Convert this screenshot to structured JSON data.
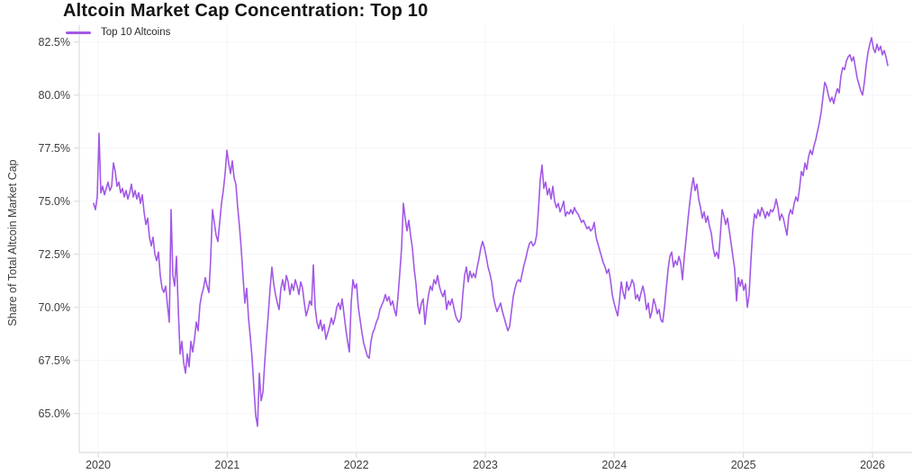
{
  "header": {
    "title": "Altcoin Market Cap Concentration: Top 10"
  },
  "legend": {
    "items": [
      {
        "label": "Top 10 Altcoins",
        "color": "#a259e6"
      }
    ]
  },
  "y_axis": {
    "title": "Share of Total Altcoin Market Cap",
    "tick_labels": [
      "82.5%",
      "80.0%",
      "77.5%",
      "75.0%",
      "72.5%",
      "70.0%",
      "67.5%",
      "65.0%"
    ],
    "tick_values": [
      82.5,
      80.0,
      77.5,
      75.0,
      72.5,
      70.0,
      67.5,
      65.0
    ]
  },
  "x_axis": {
    "tick_labels": [
      "2020",
      "2021",
      "2022",
      "2023",
      "2024",
      "2025",
      "2026"
    ],
    "tick_values": [
      2020,
      2021,
      2022,
      2023,
      2024,
      2025,
      2026
    ]
  },
  "chart_data": {
    "type": "line",
    "title": "Altcoin Market Cap Concentration: Top 10",
    "xlabel": "",
    "ylabel": "Share of Total Altcoin Market Cap",
    "legend_position": "top-left-inside",
    "grid": "very-faint",
    "x_ticks": [
      2020,
      2021,
      2022,
      2023,
      2024,
      2025,
      2026
    ],
    "y_tick_labels": [
      "82.5%",
      "80.0%",
      "77.5%",
      "75.0%",
      "72.5%",
      "70.0%",
      "67.5%",
      "65.0%"
    ],
    "y_tick_values": [
      82.5,
      80.0,
      77.5,
      75.0,
      72.5,
      70.0,
      67.5,
      65.0
    ],
    "xlim": [
      2019.85,
      2026.31
    ],
    "ylim": [
      63.2,
      83.2
    ],
    "series": [
      {
        "name": "Top 10 Altcoins",
        "color": "#a259e6",
        "unit": "%",
        "x_start_year": 2019.965,
        "x_end_year": 2026.119,
        "values": [
          74.9,
          74.6,
          75.2,
          78.2,
          75.4,
          75.7,
          75.3,
          75.6,
          75.9,
          75.5,
          75.7,
          76.8,
          76.4,
          75.7,
          75.9,
          75.4,
          75.6,
          75.2,
          75.5,
          75.1,
          75.4,
          75.8,
          75.2,
          75.5,
          75.1,
          75.4,
          74.9,
          75.3,
          74.5,
          73.9,
          74.2,
          73.3,
          72.9,
          73.3,
          72.5,
          72.2,
          72.6,
          71.5,
          70.9,
          70.7,
          71.0,
          70.1,
          69.3,
          74.6,
          71.5,
          71.0,
          72.4,
          69.9,
          67.8,
          68.4,
          67.4,
          66.9,
          67.8,
          67.2,
          68.4,
          67.9,
          68.5,
          69.3,
          68.9,
          70.1,
          70.6,
          70.9,
          71.4,
          71.0,
          70.7,
          72.3,
          74.6,
          74.0,
          73.4,
          73.1,
          74.0,
          74.9,
          75.5,
          76.3,
          77.4,
          76.8,
          76.3,
          76.9,
          76.1,
          75.8,
          74.7,
          73.8,
          72.7,
          71.4,
          70.2,
          70.9,
          69.5,
          68.6,
          67.6,
          66.2,
          64.9,
          64.4,
          66.9,
          65.6,
          66.0,
          67.4,
          68.6,
          69.7,
          70.9,
          71.9,
          71.1,
          70.6,
          70.2,
          69.9,
          70.9,
          71.3,
          70.8,
          71.5,
          71.2,
          70.6,
          71.1,
          70.8,
          71.3,
          71.0,
          70.6,
          71.2,
          70.9,
          70.2,
          69.6,
          69.9,
          70.3,
          70.1,
          72.0,
          70.0,
          69.3,
          69.0,
          69.4,
          68.9,
          69.2,
          68.5,
          68.8,
          69.1,
          69.5,
          69.2,
          69.5,
          70.0,
          70.2,
          69.9,
          70.4,
          69.7,
          69.0,
          68.4,
          67.9,
          70.2,
          71.3,
          70.9,
          71.1,
          70.0,
          69.4,
          68.8,
          68.3,
          68.0,
          67.7,
          67.6,
          68.4,
          68.8,
          69.0,
          69.3,
          69.5,
          69.9,
          70.1,
          70.3,
          70.6,
          70.3,
          70.5,
          70.1,
          70.3,
          69.9,
          69.6,
          70.5,
          71.6,
          72.8,
          74.9,
          74.2,
          73.6,
          74.1,
          73.4,
          72.8,
          71.8,
          71.1,
          70.1,
          69.7,
          70.2,
          70.4,
          69.2,
          70.0,
          70.6,
          71.0,
          70.8,
          71.3,
          71.1,
          71.5,
          71.0,
          70.7,
          70.5,
          70.8,
          69.9,
          70.3,
          70.1,
          70.4,
          70.0,
          69.6,
          69.4,
          69.3,
          69.5,
          70.6,
          71.5,
          71.9,
          71.2,
          71.7,
          71.4,
          71.6,
          71.4,
          71.9,
          72.3,
          72.8,
          73.1,
          72.8,
          72.4,
          71.9,
          71.6,
          71.2,
          70.5,
          70.1,
          69.8,
          70.0,
          70.2,
          69.8,
          69.5,
          69.2,
          68.9,
          69.1,
          69.8,
          70.5,
          70.9,
          71.2,
          71.3,
          71.2,
          71.6,
          72.0,
          72.3,
          72.7,
          73.0,
          73.1,
          72.9,
          73.0,
          73.4,
          74.6,
          76.0,
          76.7,
          75.6,
          75.9,
          75.3,
          75.6,
          75.1,
          75.7,
          75.0,
          74.7,
          74.9,
          74.5,
          74.7,
          75.0,
          74.3,
          74.5,
          74.4,
          74.6,
          74.4,
          74.7,
          74.5,
          74.4,
          74.2,
          74.0,
          74.1,
          73.9,
          73.7,
          73.8,
          73.6,
          73.7,
          74.0,
          73.3,
          73.0,
          72.7,
          72.4,
          72.1,
          71.9,
          71.6,
          71.8,
          71.3,
          70.6,
          70.2,
          69.9,
          69.6,
          70.3,
          71.2,
          70.7,
          70.4,
          71.2,
          70.8,
          71.0,
          71.3,
          71.1,
          70.4,
          70.6,
          70.3,
          70.7,
          71.0,
          70.6,
          69.9,
          70.2,
          69.5,
          69.8,
          70.4,
          70.1,
          69.7,
          69.9,
          69.4,
          69.3,
          70.0,
          70.9,
          71.8,
          72.4,
          72.6,
          71.9,
          72.2,
          72.0,
          72.4,
          72.1,
          71.3,
          72.4,
          73.2,
          74.1,
          74.9,
          75.6,
          76.1,
          75.5,
          75.8,
          75.1,
          74.7,
          74.2,
          74.5,
          74.0,
          74.3,
          73.8,
          73.5,
          72.8,
          72.4,
          72.6,
          72.3,
          73.4,
          74.6,
          74.3,
          73.9,
          74.2,
          73.6,
          73.0,
          72.4,
          71.8,
          70.3,
          71.4,
          71.0,
          71.3,
          70.8,
          71.1,
          70.0,
          70.6,
          72.2,
          73.6,
          74.4,
          74.2,
          74.6,
          74.3,
          74.7,
          74.5,
          74.2,
          74.5,
          74.3,
          74.6,
          74.5,
          74.7,
          75.1,
          74.7,
          74.1,
          74.4,
          74.2,
          73.8,
          73.4,
          74.3,
          74.6,
          74.4,
          74.9,
          75.2,
          75.0,
          75.6,
          76.4,
          76.2,
          76.8,
          76.5,
          77.1,
          77.4,
          77.2,
          77.6,
          77.9,
          78.3,
          78.7,
          79.2,
          79.9,
          80.6,
          80.4,
          80.0,
          79.7,
          79.9,
          79.6,
          80.0,
          80.3,
          80.1,
          80.9,
          81.3,
          81.2,
          81.6,
          81.8,
          81.9,
          81.6,
          81.8,
          81.3,
          80.8,
          80.5,
          80.2,
          80.0,
          80.6,
          81.4,
          82.0,
          82.4,
          82.7,
          82.2,
          82.0,
          82.4,
          82.1,
          82.3,
          81.9,
          82.1,
          81.8,
          81.4
        ]
      }
    ]
  },
  "colors": {
    "line": "#a259e6",
    "title_text": "#141414",
    "tick_text": "#3d3d3d",
    "spine": "#dcdce2",
    "grid": "#f5f3f8",
    "background": "#ffffff"
  }
}
